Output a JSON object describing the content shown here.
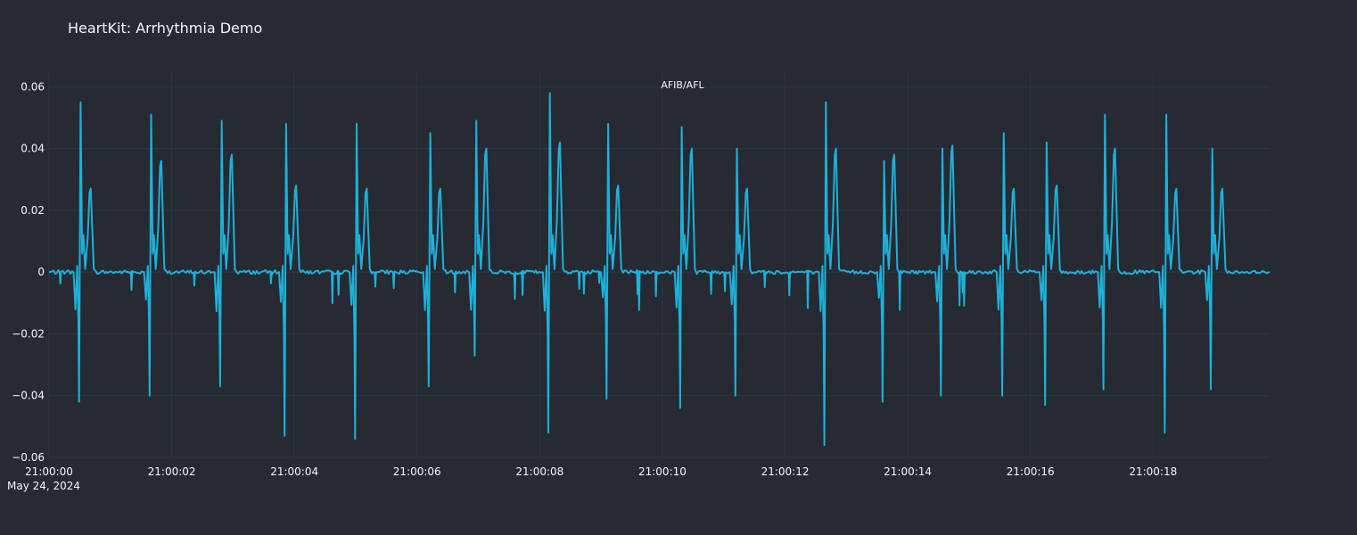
{
  "chart_data": {
    "type": "line",
    "title": "HeartKit: Arrhythmia Demo",
    "annotation": "AFIB/AFL",
    "xlabel": "",
    "ylabel": "",
    "x_range": [
      "2024-05-24 21:00:00",
      "2024-05-24 21:00:19.9"
    ],
    "ylim": [
      -0.06,
      0.065
    ],
    "x_tick_labels": [
      "21:00:00",
      "21:00:02",
      "21:00:04",
      "21:00:06",
      "21:00:08",
      "21:00:10",
      "21:00:12",
      "21:00:14",
      "21:00:16",
      "21:00:18"
    ],
    "x_tick_values_seconds": [
      0,
      2,
      4,
      6,
      8,
      10,
      12,
      14,
      16,
      18
    ],
    "x_date_label": "May 24, 2024",
    "y_tick_labels": [
      "0.06",
      "0.04",
      "0.02",
      "0",
      "−0.02",
      "−0.04",
      "−0.06"
    ],
    "y_tick_values": [
      0.06,
      0.04,
      0.02,
      0,
      -0.02,
      -0.04,
      -0.06
    ],
    "grid": true,
    "series": [
      {
        "color": "#1eb0d8",
        "beats": [
          {
            "t": 0.5,
            "q": -0.042,
            "r": 0.055,
            "tw": 0.027
          },
          {
            "t": 1.65,
            "q": -0.04,
            "r": 0.051,
            "tw": 0.036
          },
          {
            "t": 2.8,
            "q": -0.037,
            "r": 0.049,
            "tw": 0.038
          },
          {
            "t": 3.85,
            "q": -0.053,
            "r": 0.048,
            "tw": 0.028
          },
          {
            "t": 5.0,
            "q": -0.054,
            "r": 0.048,
            "tw": 0.027
          },
          {
            "t": 6.2,
            "q": -0.037,
            "r": 0.045,
            "tw": 0.027
          },
          {
            "t": 6.95,
            "q": -0.027,
            "r": 0.049,
            "tw": 0.04
          },
          {
            "t": 8.15,
            "q": -0.052,
            "r": 0.058,
            "tw": 0.042
          },
          {
            "t": 9.1,
            "q": -0.041,
            "r": 0.048,
            "tw": 0.028
          },
          {
            "t": 10.3,
            "q": -0.044,
            "r": 0.047,
            "tw": 0.04
          },
          {
            "t": 11.2,
            "q": -0.04,
            "r": 0.04,
            "tw": 0.027
          },
          {
            "t": 12.65,
            "q": -0.056,
            "r": 0.055,
            "tw": 0.04
          },
          {
            "t": 13.6,
            "q": -0.042,
            "r": 0.036,
            "tw": 0.038
          },
          {
            "t": 14.55,
            "q": -0.04,
            "r": 0.04,
            "tw": 0.041
          },
          {
            "t": 15.55,
            "q": -0.04,
            "r": 0.045,
            "tw": 0.027
          },
          {
            "t": 16.25,
            "q": -0.043,
            "r": 0.042,
            "tw": 0.028
          },
          {
            "t": 17.2,
            "q": -0.038,
            "r": 0.051,
            "tw": 0.04
          },
          {
            "t": 18.2,
            "q": -0.052,
            "r": 0.051,
            "tw": 0.027
          },
          {
            "t": 18.95,
            "q": -0.038,
            "r": 0.04,
            "tw": 0.027
          }
        ]
      }
    ]
  }
}
